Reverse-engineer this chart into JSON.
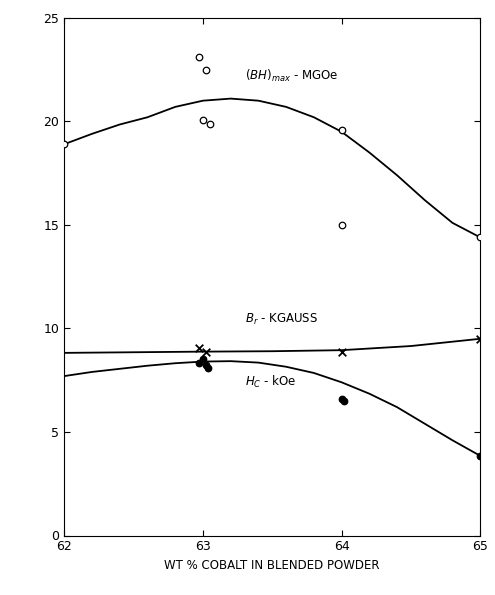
{
  "xlabel": "WT % COBALT IN BLENDED POWDER",
  "xlim": [
    62,
    65
  ],
  "ylim": [
    0,
    25
  ],
  "xticks": [
    62,
    63,
    64,
    65
  ],
  "yticks": [
    0,
    5,
    10,
    15,
    20,
    25
  ],
  "BH_scatter_x": [
    62.0,
    62.97,
    63.02,
    63.0,
    63.05,
    64.0,
    64.0,
    65.0
  ],
  "BH_scatter_y": [
    18.9,
    23.1,
    22.5,
    20.05,
    19.85,
    19.6,
    15.0,
    14.4
  ],
  "BH_curve_x": [
    62.0,
    62.2,
    62.4,
    62.6,
    62.8,
    63.0,
    63.2,
    63.4,
    63.6,
    63.8,
    64.0,
    64.2,
    64.4,
    64.6,
    64.8,
    65.0
  ],
  "BH_curve_y": [
    18.9,
    19.4,
    19.85,
    20.2,
    20.7,
    21.0,
    21.1,
    21.0,
    20.7,
    20.2,
    19.5,
    18.5,
    17.4,
    16.2,
    15.1,
    14.4
  ],
  "Br_scatter_x": [
    62.97,
    63.02,
    64.0,
    65.0
  ],
  "Br_scatter_y": [
    9.05,
    8.85,
    8.85,
    9.5
  ],
  "Br_curve_x": [
    62.0,
    62.5,
    63.0,
    63.5,
    64.0,
    64.5,
    65.0
  ],
  "Br_curve_y": [
    8.82,
    8.85,
    8.88,
    8.9,
    8.95,
    9.15,
    9.5
  ],
  "Hc_scatter_x": [
    62.97,
    63.0,
    63.02,
    63.04,
    64.0,
    64.02,
    65.0
  ],
  "Hc_scatter_y": [
    8.35,
    8.5,
    8.25,
    8.1,
    6.6,
    6.5,
    3.85
  ],
  "Hc_curve_x": [
    62.0,
    62.2,
    62.4,
    62.6,
    62.8,
    63.0,
    63.2,
    63.4,
    63.6,
    63.8,
    64.0,
    64.2,
    64.4,
    64.6,
    64.8,
    65.0
  ],
  "Hc_curve_y": [
    7.7,
    7.9,
    8.05,
    8.2,
    8.32,
    8.4,
    8.42,
    8.35,
    8.15,
    7.85,
    7.4,
    6.85,
    6.2,
    5.4,
    4.6,
    3.85
  ],
  "bg_color": "#ffffff",
  "line_color": "#000000"
}
